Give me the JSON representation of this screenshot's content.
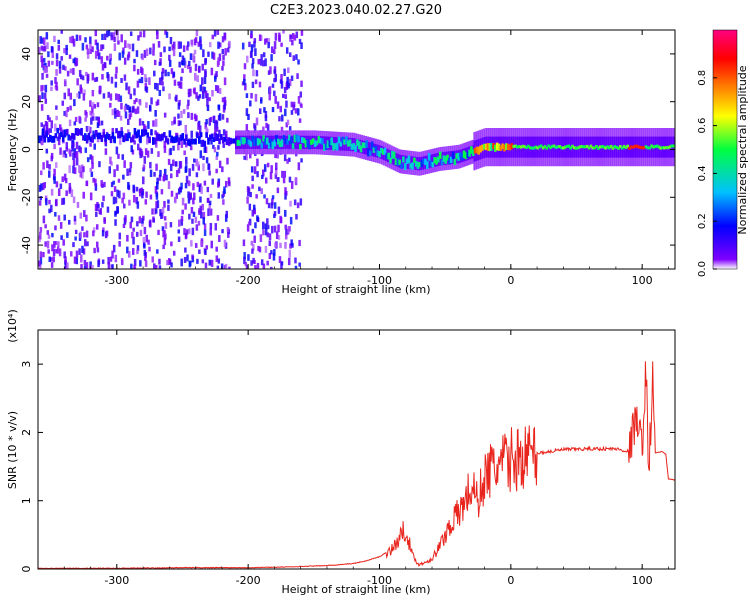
{
  "title": "C2E3.2023.040.02.27.G20",
  "chart_data": [
    {
      "type": "heatmap",
      "xlabel": "Height of straight line (km)",
      "ylabel": "Frequency (Hz)",
      "xlim": [
        -360,
        125
      ],
      "ylim": [
        -50,
        50
      ],
      "xticks": [
        -300,
        -200,
        -100,
        0,
        100
      ],
      "yticks": [
        -40,
        -20,
        0,
        20,
        40
      ],
      "colorbar": {
        "label": "Normalized spectral amplitude",
        "range": [
          0.0,
          1.0
        ],
        "ticks": [
          0.0,
          0.2,
          0.4,
          0.6,
          0.8
        ],
        "stops": [
          "#ffffff",
          "#7f00ff",
          "#0000ff",
          "#00c0ff",
          "#00ff40",
          "#ffff00",
          "#ff8000",
          "#ff0000",
          "#ff0080"
        ]
      },
      "ridge": {
        "x": [
          -360,
          -300,
          -250,
          -210,
          -180,
          -150,
          -120,
          -100,
          -85,
          -70,
          -55,
          -40,
          -30,
          -20,
          -10,
          0,
          30,
          60,
          90,
          100,
          125
        ],
        "y": [
          6,
          6,
          5,
          3,
          3,
          3,
          2,
          -1,
          -5,
          -6,
          -4,
          -3,
          -1,
          1,
          1,
          1,
          1,
          1,
          1,
          1,
          1
        ]
      }
    },
    {
      "type": "line",
      "xlabel": "Height of straight line (km)",
      "ylabel": "SNR (10 * v/v)",
      "yscale_label": "(x10⁴)",
      "xlim": [
        -360,
        125
      ],
      "ylim": [
        0,
        3.5
      ],
      "xticks": [
        -300,
        -200,
        -100,
        0,
        100
      ],
      "yticks": [
        0,
        1,
        2,
        3
      ],
      "series": [
        {
          "color": "#e8241c",
          "x": [
            -360,
            -300,
            -250,
            -200,
            -170,
            -140,
            -120,
            -110,
            -100,
            -90,
            -80,
            -75,
            -70,
            -65,
            -60,
            -55,
            -50,
            -45,
            -40,
            -35,
            -30,
            -25,
            -20,
            -15,
            -10,
            -5,
            0,
            10,
            20,
            30,
            40,
            60,
            80,
            90,
            95,
            100,
            103,
            105,
            108,
            110,
            115,
            118,
            120,
            125
          ],
          "y": [
            0.01,
            0.01,
            0.02,
            0.02,
            0.03,
            0.05,
            0.08,
            0.12,
            0.18,
            0.3,
            0.6,
            0.2,
            0.06,
            0.1,
            0.15,
            0.3,
            0.5,
            0.7,
            0.8,
            1.0,
            1.2,
            1.0,
            1.35,
            1.45,
            1.5,
            1.55,
            1.6,
            1.65,
            1.7,
            1.72,
            1.75,
            1.76,
            1.76,
            1.72,
            2.2,
            1.8,
            2.95,
            1.4,
            2.8,
            1.7,
            1.72,
            1.68,
            1.32,
            1.3
          ]
        }
      ]
    }
  ]
}
